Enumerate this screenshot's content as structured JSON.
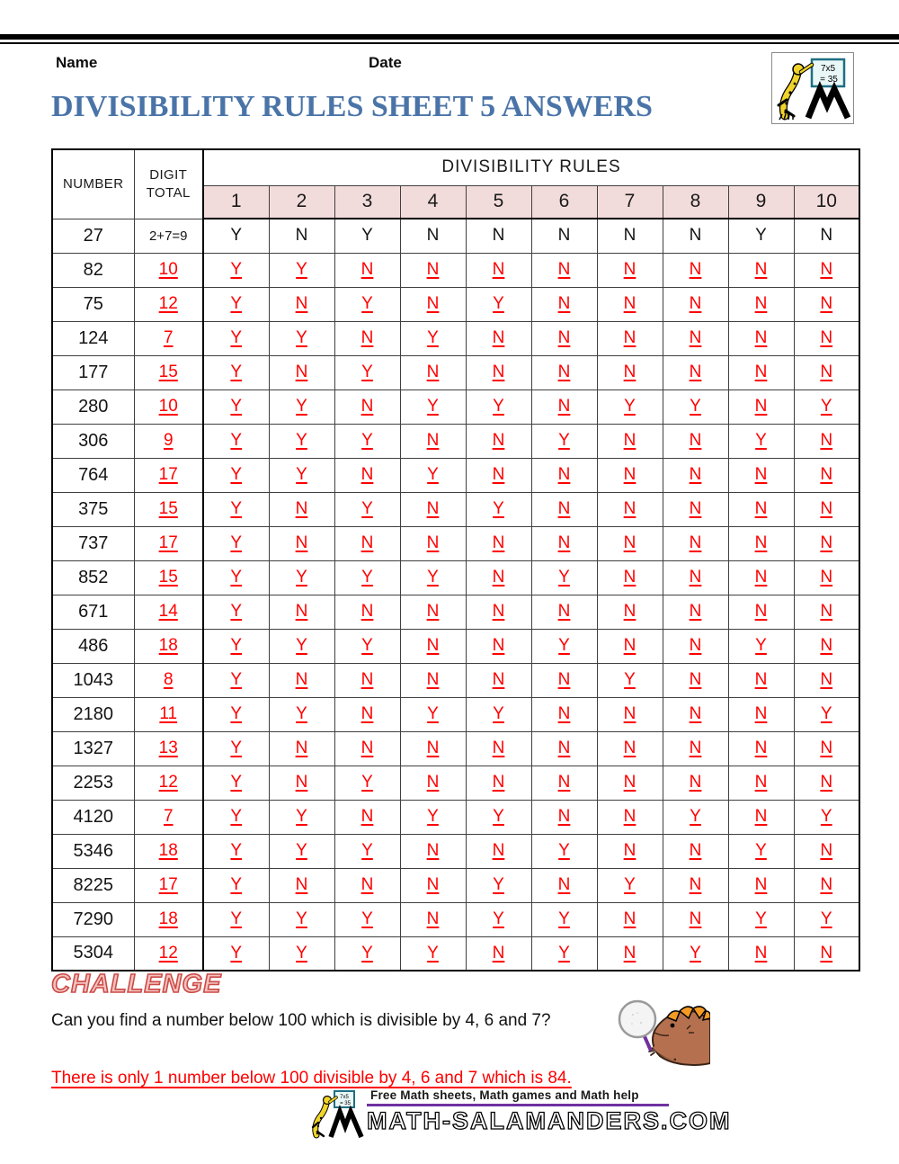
{
  "header": {
    "name_label": "Name",
    "date_label": "Date",
    "title": "DIVISIBILITY RULES SHEET 5 ANSWERS"
  },
  "logos": {
    "board_line1": "7x5",
    "board_line2": "= 35",
    "corner_logo_icon": "salamander-chalkboard-icon",
    "footer_logo_icon": "salamander-chalkboard-icon",
    "challenge_image_icon": "salamander-magnifying-glass-icon"
  },
  "table": {
    "number_header": "NUMBER",
    "digit_total_line1": "DIGIT",
    "digit_total_line2": "TOTAL",
    "rules_header": "DIVISIBILITY RULES",
    "rule_columns": [
      "1",
      "2",
      "3",
      "4",
      "5",
      "6",
      "7",
      "8",
      "9",
      "10"
    ],
    "rows": [
      {
        "number": "27",
        "digit_total": "2+7=9",
        "example": true,
        "answers": [
          "Y",
          "N",
          "Y",
          "N",
          "N",
          "N",
          "N",
          "N",
          "Y",
          "N"
        ]
      },
      {
        "number": "82",
        "digit_total": "10",
        "example": false,
        "answers": [
          "Y",
          "Y",
          "N",
          "N",
          "N",
          "N",
          "N",
          "N",
          "N",
          "N"
        ]
      },
      {
        "number": "75",
        "digit_total": "12",
        "example": false,
        "answers": [
          "Y",
          "N",
          "Y",
          "N",
          "Y",
          "N",
          "N",
          "N",
          "N",
          "N"
        ]
      },
      {
        "number": "124",
        "digit_total": "7",
        "example": false,
        "answers": [
          "Y",
          "Y",
          "N",
          "Y",
          "N",
          "N",
          "N",
          "N",
          "N",
          "N"
        ]
      },
      {
        "number": "177",
        "digit_total": "15",
        "example": false,
        "answers": [
          "Y",
          "N",
          "Y",
          "N",
          "N",
          "N",
          "N",
          "N",
          "N",
          "N"
        ]
      },
      {
        "number": "280",
        "digit_total": "10",
        "example": false,
        "answers": [
          "Y",
          "Y",
          "N",
          "Y",
          "Y",
          "N",
          "Y",
          "Y",
          "N",
          "Y"
        ]
      },
      {
        "number": "306",
        "digit_total": "9",
        "example": false,
        "answers": [
          "Y",
          "Y",
          "Y",
          "N",
          "N",
          "Y",
          "N",
          "N",
          "Y",
          "N"
        ]
      },
      {
        "number": "764",
        "digit_total": "17",
        "example": false,
        "answers": [
          "Y",
          "Y",
          "N",
          "Y",
          "N",
          "N",
          "N",
          "N",
          "N",
          "N"
        ]
      },
      {
        "number": "375",
        "digit_total": "15",
        "example": false,
        "answers": [
          "Y",
          "N",
          "Y",
          "N",
          "Y",
          "N",
          "N",
          "N",
          "N",
          "N"
        ]
      },
      {
        "number": "737",
        "digit_total": "17",
        "example": false,
        "answers": [
          "Y",
          "N",
          "N",
          "N",
          "N",
          "N",
          "N",
          "N",
          "N",
          "N"
        ]
      },
      {
        "number": "852",
        "digit_total": "15",
        "example": false,
        "answers": [
          "Y",
          "Y",
          "Y",
          "Y",
          "N",
          "Y",
          "N",
          "N",
          "N",
          "N"
        ]
      },
      {
        "number": "671",
        "digit_total": "14",
        "example": false,
        "answers": [
          "Y",
          "N",
          "N",
          "N",
          "N",
          "N",
          "N",
          "N",
          "N",
          "N"
        ]
      },
      {
        "number": "486",
        "digit_total": "18",
        "example": false,
        "answers": [
          "Y",
          "Y",
          "Y",
          "N",
          "N",
          "Y",
          "N",
          "N",
          "Y",
          "N"
        ]
      },
      {
        "number": "1043",
        "digit_total": "8",
        "example": false,
        "answers": [
          "Y",
          "N",
          "N",
          "N",
          "N",
          "N",
          "Y",
          "N",
          "N",
          "N"
        ]
      },
      {
        "number": "2180",
        "digit_total": "11",
        "example": false,
        "answers": [
          "Y",
          "Y",
          "N",
          "Y",
          "Y",
          "N",
          "N",
          "N",
          "N",
          "Y"
        ]
      },
      {
        "number": "1327",
        "digit_total": "13",
        "example": false,
        "answers": [
          "Y",
          "N",
          "N",
          "N",
          "N",
          "N",
          "N",
          "N",
          "N",
          "N"
        ]
      },
      {
        "number": "2253",
        "digit_total": "12",
        "example": false,
        "answers": [
          "Y",
          "N",
          "Y",
          "N",
          "N",
          "N",
          "N",
          "N",
          "N",
          "N"
        ]
      },
      {
        "number": "4120",
        "digit_total": "7",
        "example": false,
        "answers": [
          "Y",
          "Y",
          "N",
          "Y",
          "Y",
          "N",
          "N",
          "Y",
          "N",
          "Y"
        ]
      },
      {
        "number": "5346",
        "digit_total": "18",
        "example": false,
        "answers": [
          "Y",
          "Y",
          "Y",
          "N",
          "N",
          "Y",
          "N",
          "N",
          "Y",
          "N"
        ]
      },
      {
        "number": "8225",
        "digit_total": "17",
        "example": false,
        "answers": [
          "Y",
          "N",
          "N",
          "N",
          "Y",
          "N",
          "Y",
          "N",
          "N",
          "N"
        ]
      },
      {
        "number": "7290",
        "digit_total": "18",
        "example": false,
        "answers": [
          "Y",
          "Y",
          "Y",
          "N",
          "Y",
          "Y",
          "N",
          "N",
          "Y",
          "Y"
        ]
      },
      {
        "number": "5304",
        "digit_total": "12",
        "example": false,
        "answers": [
          "Y",
          "Y",
          "Y",
          "Y",
          "N",
          "Y",
          "N",
          "Y",
          "N",
          "N"
        ]
      }
    ]
  },
  "challenge": {
    "heading": "CHALLENGE",
    "question": "Can you find a number below 100 which is divisible by 4, 6 and 7?",
    "answer": "There is only 1 number below 100 divisible by 4, 6 and 7 which is 84."
  },
  "footer": {
    "tagline": "Free Math sheets, Math games and Math help",
    "site": "MATH-SALAMANDERS.COM"
  },
  "colors": {
    "title_blue": "#4a74a8",
    "answer_red": "#ff0000",
    "header_pink": "#f2dcdb",
    "tagline_purple": "#7030a0",
    "salamander_yellow": "#f0d42a",
    "lizard_brown": "#b5714f",
    "crest_orange": "#f59a23"
  }
}
